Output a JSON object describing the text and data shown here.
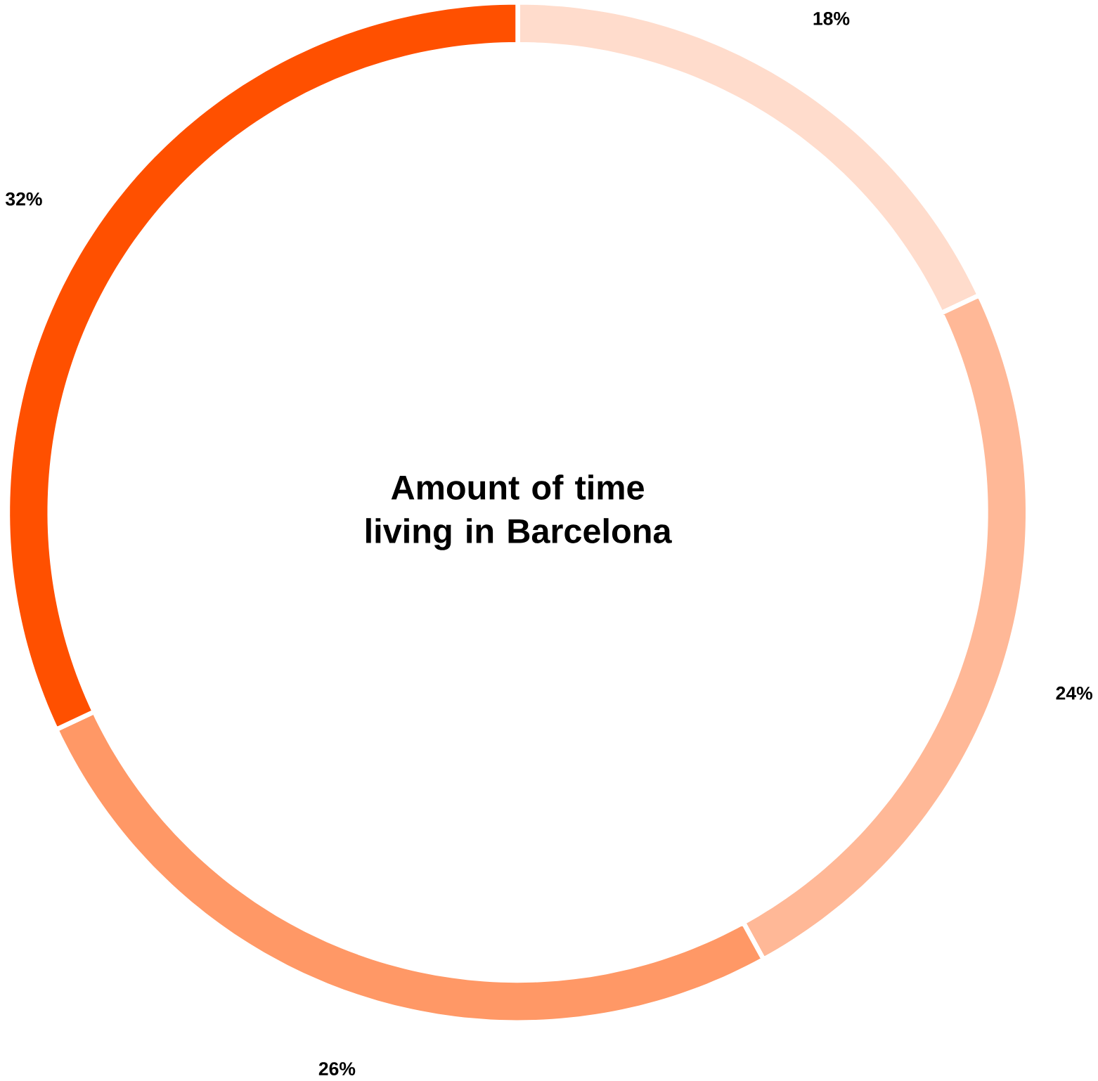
{
  "chart_data": {
    "type": "donut",
    "title": "Amount of time living in Barcelona",
    "categories": [
      null,
      null,
      null,
      null
    ],
    "values": [
      18,
      24,
      26,
      32
    ],
    "value_labels": [
      "18%",
      "24%",
      "26%",
      "32%"
    ],
    "colors": [
      "#ffdccc",
      "#ffb897",
      "#ff9866",
      "#ff5000"
    ]
  }
}
